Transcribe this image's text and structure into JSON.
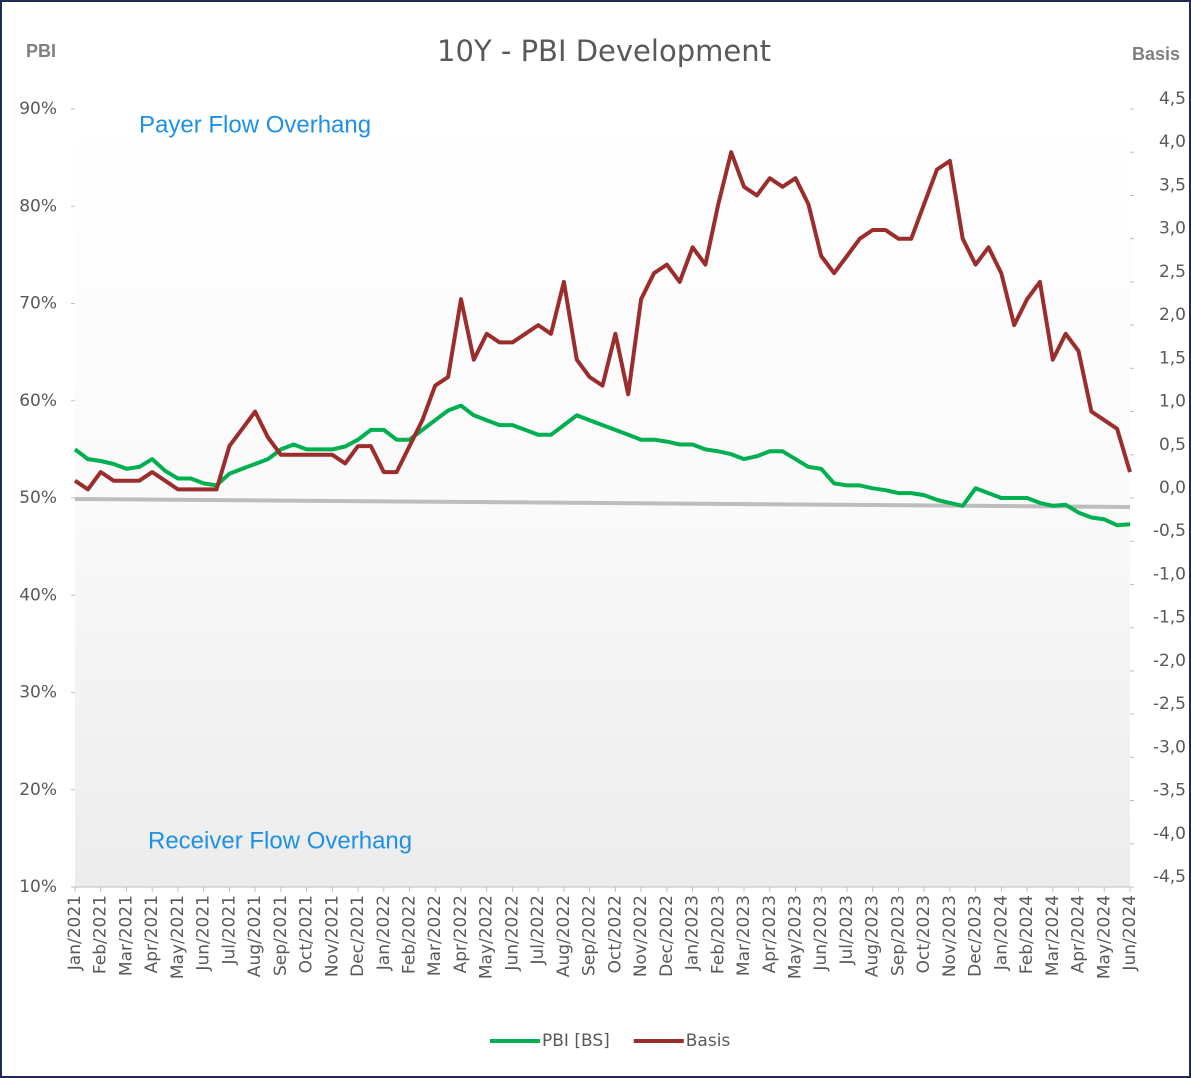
{
  "chart_data": {
    "type": "line",
    "title": "10Y - PBI Development",
    "y_label": "PBI",
    "y2_label": "Basis",
    "annotations": [
      "Payer Flow Overhang",
      "Receiver Flow Overhang"
    ],
    "categories": [
      "Jan/2021",
      null,
      "Feb/2021",
      null,
      "Mar/2021",
      null,
      "Apr/2021",
      null,
      "May/2021",
      null,
      "Jun/2021",
      null,
      "Jul/2021",
      null,
      "Aug/2021",
      null,
      "Sep/2021",
      null,
      "Oct/2021",
      null,
      "Nov/2021",
      null,
      "Dec/2021",
      null,
      "Jan/2022",
      null,
      "Feb/2022",
      null,
      "Mar/2022",
      null,
      "Apr/2022",
      null,
      "May/2022",
      null,
      "Jun/2022",
      null,
      "Jul/2022",
      null,
      "Aug/2022",
      null,
      "Sep/2022",
      null,
      "Oct/2022",
      null,
      "Nov/2022",
      null,
      "Dec/2022",
      null,
      "Jan/2023",
      null,
      "Feb/2023",
      null,
      "Mar/2023",
      null,
      "Apr/2023",
      null,
      "May/2023",
      null,
      "Jun/2023",
      null,
      "Jul/2023",
      null,
      "Aug/2023",
      null,
      "Sep/2023",
      null,
      "Oct/2023",
      null,
      "Nov/2023",
      null,
      "Dec/2023",
      null,
      "Jan/2024",
      null,
      "Feb/2024",
      null,
      "Mar/2024",
      null,
      "Apr/2024",
      null,
      "May/2024",
      null,
      "Jun/2024"
    ],
    "series": [
      {
        "name": "PBI [BS]",
        "color": "#00b050",
        "values": [
          55,
          54,
          53.8,
          53.5,
          53,
          53.2,
          54,
          52.8,
          52,
          52,
          51.5,
          51.3,
          52.5,
          53,
          53.5,
          54,
          55,
          55.5,
          55,
          55,
          55,
          55.3,
          56,
          57,
          57,
          56,
          56,
          57,
          58,
          59,
          59.5,
          58.5,
          58,
          57.5,
          57.5,
          57,
          56.5,
          56.5,
          57.5,
          58.5,
          58,
          57.5,
          57,
          56.5,
          56,
          56,
          55.8,
          55.5,
          55.5,
          55,
          54.8,
          54.5,
          54,
          54.3,
          54.8,
          54.8,
          54,
          53.2,
          53,
          51.5,
          51.3,
          51.3,
          51,
          50.8,
          50.5,
          50.5,
          50.3,
          49.8,
          49.5,
          49.2,
          51,
          50.5,
          50,
          50,
          50,
          49.5,
          49.2,
          49.3,
          48.5,
          48,
          47.8,
          47.2,
          47.3
        ]
      },
      {
        "name": "Basis",
        "color": "#9b2d2d",
        "axis": "y2",
        "values": [
          0.2,
          0.1,
          0.3,
          0.2,
          0.2,
          0.2,
          0.3,
          0.2,
          0.1,
          0.1,
          0.1,
          0.1,
          0.6,
          0.8,
          1.0,
          0.7,
          0.5,
          0.5,
          0.5,
          0.5,
          0.5,
          0.4,
          0.6,
          0.6,
          0.3,
          0.3,
          0.6,
          0.9,
          1.3,
          1.4,
          2.3,
          1.6,
          1.9,
          1.8,
          1.8,
          1.9,
          2.0,
          1.9,
          2.5,
          1.6,
          1.4,
          1.3,
          1.9,
          1.2,
          2.3,
          2.6,
          2.7,
          2.5,
          2.9,
          2.7,
          3.4,
          4.0,
          3.6,
          3.5,
          3.7,
          3.6,
          3.7,
          3.4,
          2.8,
          2.6,
          2.8,
          3.0,
          3.1,
          3.1,
          3.0,
          3.0,
          3.4,
          3.8,
          3.9,
          3.0,
          2.7,
          2.9,
          2.6,
          2.0,
          2.3,
          2.5,
          1.6,
          1.9,
          1.7,
          1.0,
          0.9,
          0.8,
          0.3
        ]
      }
    ],
    "ylim": [
      10,
      90
    ],
    "yticks": [
      {
        "value": 10,
        "label": "10%"
      },
      {
        "value": 20,
        "label": "20%"
      },
      {
        "value": 30,
        "label": "30%"
      },
      {
        "value": 40,
        "label": "40%"
      },
      {
        "value": 50,
        "label": "50%"
      },
      {
        "value": 60,
        "label": "60%"
      },
      {
        "value": 70,
        "label": "70%"
      },
      {
        "value": 80,
        "label": "80%"
      },
      {
        "value": 90,
        "label": "90%"
      }
    ],
    "y2lim": [
      -4.5,
      4.5
    ],
    "y2ticks": [
      {
        "value": -4.5,
        "label": "-4,5"
      },
      {
        "value": -4,
        "label": "-4,0"
      },
      {
        "value": -3.5,
        "label": "-3,5"
      },
      {
        "value": -3,
        "label": "-3,0"
      },
      {
        "value": -2.5,
        "label": "-2,5"
      },
      {
        "value": -2,
        "label": "-2,0"
      },
      {
        "value": -1.5,
        "label": "-1,5"
      },
      {
        "value": -1,
        "label": "-1,0"
      },
      {
        "value": -0.5,
        "label": "-0,5"
      },
      {
        "value": 0,
        "label": "0,0"
      },
      {
        "value": 0.5,
        "label": "0,5"
      },
      {
        "value": 1,
        "label": "1,0"
      },
      {
        "value": 1.5,
        "label": "1,5"
      },
      {
        "value": 2,
        "label": "2,0"
      },
      {
        "value": 2.5,
        "label": "2,5"
      },
      {
        "value": 3,
        "label": "3,0"
      },
      {
        "value": 3.5,
        "label": "3,5"
      },
      {
        "value": 4,
        "label": "4,0"
      },
      {
        "value": 4.5,
        "label": "4,5"
      }
    ],
    "grid": false
  }
}
